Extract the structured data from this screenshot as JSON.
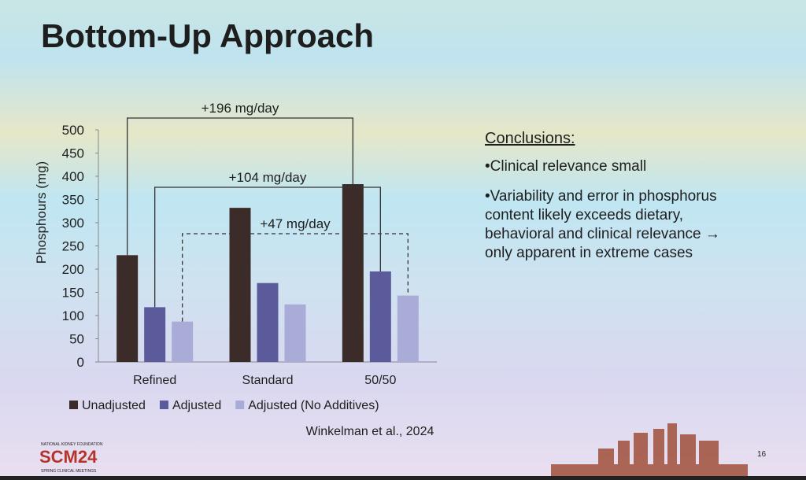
{
  "chart_data": {
    "type": "bar",
    "title": "Bottom-Up Approach",
    "y_label": "Phosphours (mg)",
    "categories": [
      "Refined",
      "Standard",
      "50/50"
    ],
    "series": [
      {
        "name": "Unadjusted",
        "color": "#3b2c2a",
        "values": [
          230,
          332,
          383
        ]
      },
      {
        "name": "Adjusted",
        "color": "#5b5b9c",
        "values": [
          118,
          170,
          195
        ]
      },
      {
        "name": "Adjusted (No Additives)",
        "color": "#aaacd8",
        "values": [
          87,
          124,
          143
        ]
      }
    ],
    "annotations": [
      "+196 mg/day",
      "+104 mg/day",
      "+47 mg/day"
    ],
    "ylim": [
      0,
      500
    ],
    "yticks": [
      0,
      50,
      100,
      150,
      200,
      250,
      300,
      350,
      400,
      450,
      500
    ],
    "legend": "bottom"
  },
  "slide": {
    "conclusions_heading": "Conclusions:",
    "bullets": [
      "Clinical relevance small",
      "Variability and error in phosphorus content likely exceeds dietary, behavioral and clinical relevance → only apparent in extreme cases"
    ],
    "citation": "Winkelman et al., 2024",
    "page_number": "16",
    "logo": {
      "org": "NATIONAL KIDNEY FOUNDATION",
      "name": "SCM24",
      "subtitle": "SPRING CLINICAL MEETINGS"
    }
  }
}
